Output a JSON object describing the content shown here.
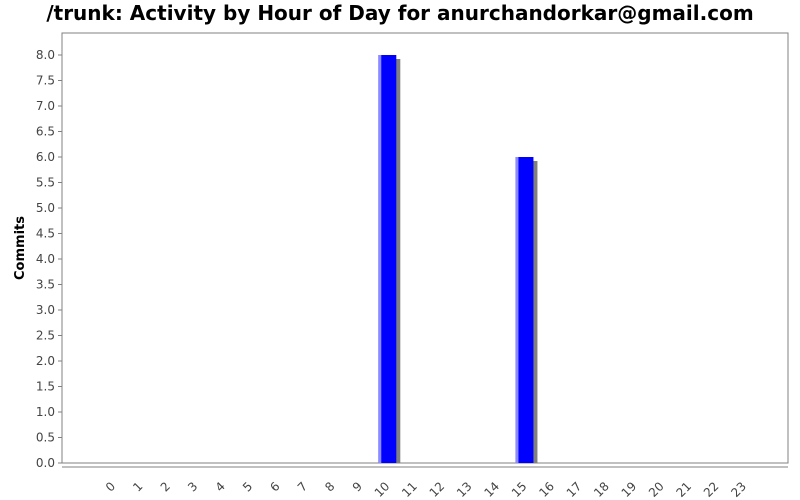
{
  "chart_data": {
    "type": "bar",
    "title": "/trunk: Activity by Hour of Day for anurchandorkar@gmail.com",
    "xlabel": "",
    "ylabel": "Commits",
    "categories": [
      "0",
      "1",
      "2",
      "3",
      "4",
      "5",
      "6",
      "7",
      "8",
      "9",
      "10",
      "11",
      "12",
      "13",
      "14",
      "15",
      "16",
      "17",
      "18",
      "19",
      "20",
      "21",
      "22",
      "23"
    ],
    "values": [
      0,
      0,
      0,
      0,
      0,
      0,
      0,
      0,
      0,
      0,
      8,
      0,
      0,
      0,
      0,
      6,
      0,
      0,
      0,
      0,
      0,
      0,
      0,
      0
    ],
    "ylim": [
      0,
      8.4
    ],
    "yticks": [
      "0.0",
      "0.5",
      "1.0",
      "1.5",
      "2.0",
      "2.5",
      "3.0",
      "3.5",
      "4.0",
      "4.5",
      "5.0",
      "5.5",
      "6.0",
      "6.5",
      "7.0",
      "7.5",
      "8.0"
    ],
    "grid": false,
    "colors": {
      "bar": "#0000ff",
      "shadow": "#808080",
      "axis": "#808080",
      "tick_text": "#444444"
    }
  }
}
